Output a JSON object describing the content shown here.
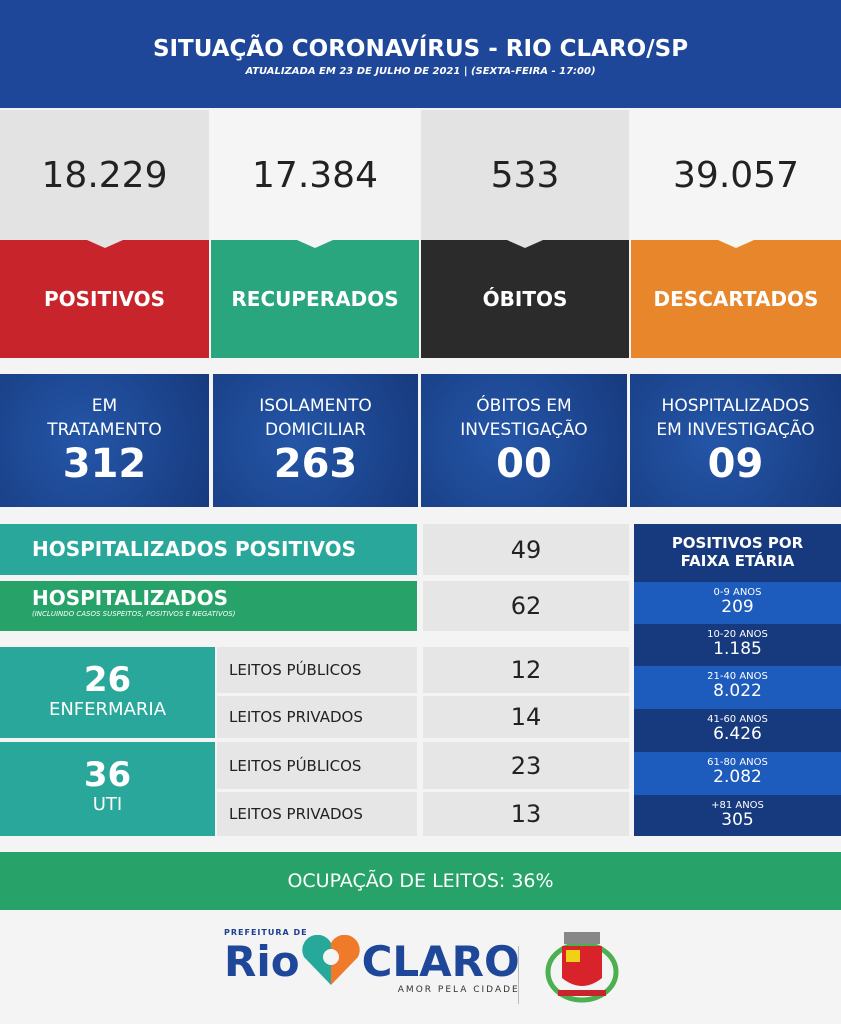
{
  "header": {
    "title": "SITUAÇÃO CORONAVÍRUS - RIO CLARO/SP",
    "subtitle": "ATUALIZADA EM 23 DE JULHO DE 2021 | (SEXTA-FEIRA - 17:00)"
  },
  "cards": [
    {
      "value": "18.229",
      "label": "POSITIVOS",
      "color": "#c8242b"
    },
    {
      "value": "17.384",
      "label": "RECUPERADOS",
      "color": "#2aa67f"
    },
    {
      "value": "533",
      "label": "ÓBITOS",
      "color": "#2b2b2b"
    },
    {
      "value": "39.057",
      "label": "DESCARTADOS",
      "color": "#e8862c"
    }
  ],
  "status": [
    {
      "l1": "EM",
      "l2": "TRATAMENTO",
      "value": "312"
    },
    {
      "l1": "ISOLAMENTO",
      "l2": "DOMICILIAR",
      "value": "263"
    },
    {
      "l1": "ÓBITOS EM",
      "l2": "INVESTIGAÇÃO",
      "value": "00"
    },
    {
      "l1": "HOSPITALIZADOS",
      "l2": "EM INVESTIGAÇÃO",
      "value": "09"
    }
  ],
  "hosp_pos": {
    "label": "HOSPITALIZADOS POSITIVOS",
    "value": "49"
  },
  "hosp": {
    "label": "HOSPITALIZADOS",
    "note": "(INCLUINDO CASOS SUSPEITOS, POSITIVOS E NEGATIVOS)",
    "value": "62"
  },
  "enfermaria": {
    "total": "26",
    "label": "ENFERMARIA",
    "publicos_label": "LEITOS PÚBLICOS",
    "publicos": "12",
    "privados_label": "LEITOS PRIVADOS",
    "privados": "14"
  },
  "uti": {
    "total": "36",
    "label": "UTI",
    "publicos_label": "LEITOS PÚBLICOS",
    "publicos": "23",
    "privados_label": "LEITOS PRIVADOS",
    "privados": "13"
  },
  "faixa": {
    "title1": "POSITIVOS POR",
    "title2": "FAIXA ETÁRIA",
    "rows": [
      {
        "age": "0-9 ANOS",
        "value": "209"
      },
      {
        "age": "10-20 ANOS",
        "value": "1.185"
      },
      {
        "age": "21-40 ANOS",
        "value": "8.022"
      },
      {
        "age": "41-60 ANOS",
        "value": "6.426"
      },
      {
        "age": "61-80 ANOS",
        "value": "2.082"
      },
      {
        "age": "+81 ANOS",
        "value": "305"
      }
    ]
  },
  "ocupacao": "OCUPAÇÃO DE LEITOS: 36%",
  "footer": {
    "prefeitura": "PREFEITURA DE",
    "rio": "Rio",
    "claro": "CLARO",
    "slogan": "AMOR PELA CIDADE"
  }
}
